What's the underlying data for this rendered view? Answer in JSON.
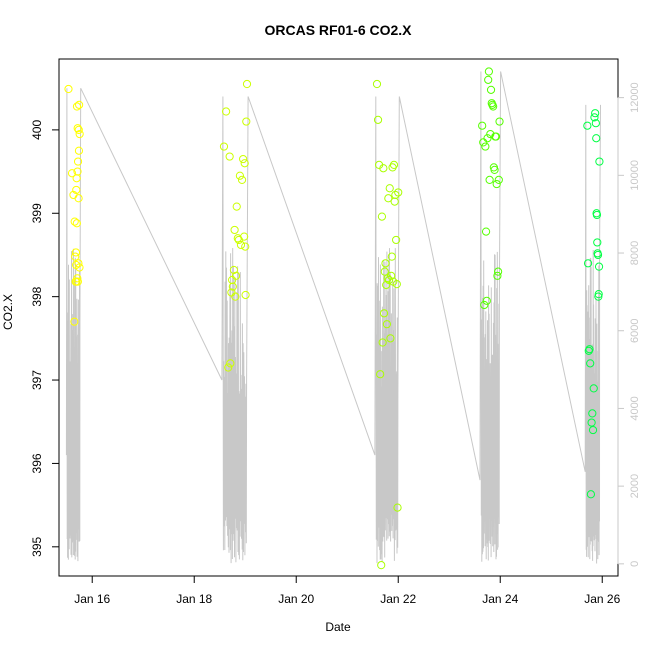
{
  "chart_data": {
    "type": "scatter",
    "title": "ORCAS RF01-6 CO2.X",
    "xlabel": "Date",
    "ylabel": "CO2.X",
    "x_axis_type": "date",
    "xlim": [
      "2016-01-15T08:22",
      "2016-01-26T07:25"
    ],
    "ylim": [
      394.65,
      400.85
    ],
    "y_ticks": [
      395,
      396,
      397,
      398,
      399,
      400
    ],
    "x_ticks": [
      {
        "date": "2016-01-16",
        "label": "Jan 16"
      },
      {
        "date": "2016-01-18",
        "label": "Jan 18"
      },
      {
        "date": "2016-01-20",
        "label": "Jan 20"
      },
      {
        "date": "2016-01-22",
        "label": "Jan 22"
      },
      {
        "date": "2016-01-24",
        "label": "Jan 24"
      },
      {
        "date": "2016-01-26",
        "label": "Jan 26"
      }
    ],
    "right_axis": {
      "ticks": [
        0,
        2000,
        4000,
        6000,
        8000,
        10000,
        12000
      ],
      "ylim": [
        -313,
        12994
      ],
      "color": "#c8c8c8"
    },
    "grid": false,
    "legend": "none",
    "point_colors": [
      "#ffff00",
      "#ccff00",
      "#aaff00",
      "#55ff00",
      "#00ff44"
    ],
    "line_color": "#c8c8c8",
    "series": [
      {
        "marker": "circle",
        "color": "#ffff00",
        "x": [
          "2016-01-15T12:50",
          "2016-01-15T14:30",
          "2016-01-15T15:10",
          "2016-01-15T15:35",
          "2016-01-15T15:45",
          "2016-01-15T16:00",
          "2016-01-15T16:10",
          "2016-01-15T16:20",
          "2016-01-15T16:25",
          "2016-01-15T16:30",
          "2016-01-15T16:35",
          "2016-01-15T16:40",
          "2016-01-15T16:45",
          "2016-01-15T16:50",
          "2016-01-15T17:00",
          "2016-01-15T17:05",
          "2016-01-15T17:10",
          "2016-01-15T17:15",
          "2016-01-15T17:20",
          "2016-01-15T17:30",
          "2016-01-15T17:35",
          "2016-01-15T17:40",
          "2016-01-15T17:45",
          "2016-01-15T17:50",
          "2016-01-15T18:00",
          "2016-01-15T18:05"
        ],
        "y": [
          400.49,
          399.48,
          399.22,
          397.7,
          398.9,
          398.48,
          398.18,
          398.53,
          398.38,
          399.28,
          398.18,
          399.42,
          398.88,
          400.28,
          398.22,
          399.5,
          400.02,
          398.18,
          399.62,
          398.4,
          399.18,
          400.0,
          399.75,
          400.3,
          398.35,
          399.95
        ]
      },
      {
        "marker": "circle",
        "color": "#ccff00",
        "x": [
          "2016-01-18T14:00",
          "2016-01-18T15:00",
          "2016-01-18T16:00",
          "2016-01-18T16:40",
          "2016-01-18T17:00",
          "2016-01-18T17:30",
          "2016-01-18T17:50",
          "2016-01-18T18:10",
          "2016-01-18T18:40",
          "2016-01-18T19:00",
          "2016-01-18T19:20",
          "2016-01-18T19:40",
          "2016-01-18T20:00",
          "2016-01-18T20:30",
          "2016-01-18T21:00",
          "2016-01-18T21:30",
          "2016-01-18T22:00",
          "2016-01-18T22:30",
          "2016-01-18T23:00",
          "2016-01-18T23:30",
          "2016-01-18T23:45",
          "2016-01-19T00:00",
          "2016-01-19T00:10",
          "2016-01-19T00:30",
          "2016-01-19T00:50"
        ],
        "y": [
          399.8,
          400.22,
          397.15,
          399.68,
          397.2,
          398.05,
          398.2,
          398.12,
          398.32,
          398.8,
          398.0,
          398.25,
          399.08,
          398.7,
          398.68,
          399.45,
          398.62,
          399.4,
          399.65,
          398.72,
          399.6,
          398.6,
          398.02,
          400.1,
          400.55
        ]
      },
      {
        "marker": "circle",
        "color": "#aaff00",
        "x": [
          "2016-01-21T14:00",
          "2016-01-21T14:30",
          "2016-01-21T15:00",
          "2016-01-21T15:30",
          "2016-01-21T16:00",
          "2016-01-21T16:20",
          "2016-01-21T16:40",
          "2016-01-21T17:00",
          "2016-01-21T17:20",
          "2016-01-21T17:40",
          "2016-01-21T18:00",
          "2016-01-21T18:20",
          "2016-01-21T18:40",
          "2016-01-21T19:00",
          "2016-01-21T19:20",
          "2016-01-21T19:40",
          "2016-01-21T20:00",
          "2016-01-21T20:20",
          "2016-01-21T20:40",
          "2016-01-21T21:00",
          "2016-01-21T21:20",
          "2016-01-21T21:40",
          "2016-01-21T22:00",
          "2016-01-21T22:20",
          "2016-01-21T22:40",
          "2016-01-21T23:00",
          "2016-01-21T23:20",
          "2016-01-21T23:40",
          "2016-01-22T00:00"
        ],
        "y": [
          400.55,
          400.12,
          399.58,
          397.07,
          394.78,
          398.96,
          397.45,
          399.54,
          397.8,
          398.3,
          398.4,
          398.14,
          397.67,
          398.22,
          399.18,
          398.2,
          399.3,
          397.5,
          398.25,
          398.48,
          399.55,
          398.18,
          399.58,
          399.14,
          399.22,
          398.68,
          398.15,
          395.47,
          399.25
        ]
      },
      {
        "marker": "circle",
        "color": "#55ff00",
        "x": [
          "2016-01-23T15:30",
          "2016-01-23T16:00",
          "2016-01-23T16:30",
          "2016-01-23T17:00",
          "2016-01-23T17:20",
          "2016-01-23T17:40",
          "2016-01-23T18:00",
          "2016-01-23T18:20",
          "2016-01-23T18:40",
          "2016-01-23T19:00",
          "2016-01-23T19:20",
          "2016-01-23T19:40",
          "2016-01-23T20:00",
          "2016-01-23T20:20",
          "2016-01-23T20:40",
          "2016-01-23T21:00",
          "2016-01-23T21:20",
          "2016-01-23T21:40",
          "2016-01-23T22:00",
          "2016-01-23T22:20",
          "2016-01-23T22:40",
          "2016-01-23T23:00",
          "2016-01-23T23:20",
          "2016-01-23T23:40"
        ],
        "y": [
          400.05,
          399.85,
          397.9,
          399.8,
          398.78,
          397.95,
          399.9,
          400.6,
          400.7,
          399.4,
          399.95,
          400.48,
          400.32,
          400.3,
          400.28,
          399.55,
          399.52,
          399.92,
          399.92,
          399.35,
          398.25,
          398.3,
          399.4,
          400.1
        ]
      },
      {
        "marker": "circle",
        "color": "#00ff44",
        "x": [
          "2016-01-25T17:00",
          "2016-01-25T17:20",
          "2016-01-25T17:40",
          "2016-01-25T18:00",
          "2016-01-25T18:20",
          "2016-01-25T18:40",
          "2016-01-25T19:00",
          "2016-01-25T19:20",
          "2016-01-25T19:40",
          "2016-01-25T20:00",
          "2016-01-25T20:20",
          "2016-01-25T20:40",
          "2016-01-25T21:00",
          "2016-01-25T21:10",
          "2016-01-25T21:20",
          "2016-01-25T21:30",
          "2016-01-25T21:40",
          "2016-01-25T21:50",
          "2016-01-25T22:00",
          "2016-01-25T22:10",
          "2016-01-25T22:20",
          "2016-01-25T22:30",
          "2016-01-25T22:40"
        ],
        "y": [
          400.05,
          398.4,
          397.35,
          397.37,
          397.2,
          395.63,
          396.49,
          396.6,
          396.4,
          396.9,
          400.15,
          400.2,
          400.08,
          399.9,
          399.0,
          398.98,
          398.65,
          398.52,
          398.5,
          398.0,
          398.03,
          398.36,
          399.62
        ]
      }
    ]
  }
}
